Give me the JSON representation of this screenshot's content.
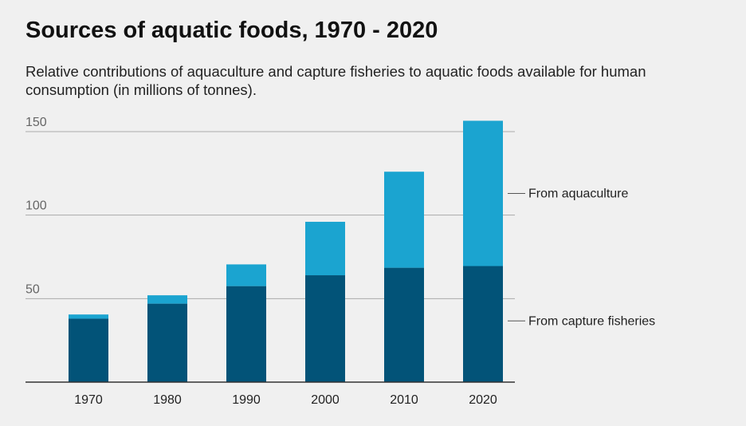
{
  "title": "Sources of aquatic foods, 1970 - 2020",
  "subtitle": "Relative contributions of aquaculture and capture fisheries to aquatic foods available for human consumption (in millions of tonnes).",
  "colors": {
    "capture": "#025378",
    "aquaculture": "#1ba4d0",
    "gridline": "#aaaaaa",
    "axis": "#333333",
    "background": "#f0f0f0"
  },
  "chart_data": {
    "type": "bar",
    "stacked": true,
    "title": "Sources of aquatic foods, 1970 - 2020",
    "subtitle": "Relative contributions of aquaculture and capture fisheries to aquatic foods available for human consumption (in millions of tonnes).",
    "xlabel": "",
    "ylabel": "",
    "categories": [
      "1970",
      "1980",
      "1990",
      "2000",
      "2010",
      "2020"
    ],
    "series": [
      {
        "name": "From capture fisheries",
        "values": [
          38,
          47,
          57.5,
          64,
          68.5,
          69.5
        ]
      },
      {
        "name": "From aquaculture",
        "values": [
          2.5,
          5,
          13,
          32,
          57.5,
          87
        ]
      }
    ],
    "yticks": [
      50,
      100,
      150
    ],
    "ylim": [
      0,
      150
    ],
    "grid": true,
    "legend": "right, inline labels"
  }
}
